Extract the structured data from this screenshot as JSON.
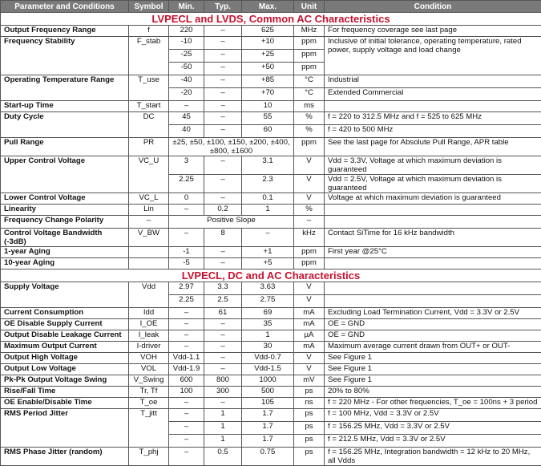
{
  "headers": [
    "Parameter and Conditions",
    "Symbol",
    "Min.",
    "Typ.",
    "Max.",
    "Unit",
    "Condition"
  ],
  "colors": {
    "header_bg": "#7a7a7a",
    "section_title": "#c8102e"
  },
  "sections": [
    {
      "title": "LVPECL and LVDS, Common AC Characteristics",
      "params": [
        {
          "param": "Output Frequency Range",
          "symbol": "f",
          "rows": [
            [
              "220",
              "–",
              "625",
              "MHz",
              "For frequency coverage see last page"
            ]
          ]
        },
        {
          "param": "Frequency Stability",
          "symbol": "F_stab",
          "shared_condition": "Inclusive of initial tolerance, operating temperature, rated power, supply voltage and load change",
          "rows": [
            [
              "-10",
              "–",
              "+10",
              "ppm"
            ],
            [
              "-25",
              "–",
              "+25",
              "ppm"
            ],
            [
              "-50",
              "–",
              "+50",
              "ppm"
            ]
          ]
        },
        {
          "param": "Operating Temperature Range",
          "symbol": "T_use",
          "rows": [
            [
              "-40",
              "–",
              "+85",
              "°C",
              "Industrial"
            ],
            [
              "-20",
              "–",
              "+70",
              "°C",
              "Extended Commercial"
            ]
          ]
        },
        {
          "param": "Start-up Time",
          "symbol": "T_start",
          "rows": [
            [
              "–",
              "–",
              "10",
              "ms",
              ""
            ]
          ]
        },
        {
          "param": "Duty Cycle",
          "symbol": "DC",
          "rows": [
            [
              "45",
              "–",
              "55",
              "%",
              "f = 220 to 312.5 MHz and f = 525 to 625 MHz"
            ],
            [
              "40",
              "–",
              "60",
              "%",
              "f = 420 to 500 MHz"
            ]
          ]
        },
        {
          "param": "Pull Range",
          "symbol": "PR",
          "rows": [
            {
              "merged": "±25, ±50, ±100, ±150, ±200, ±400, ±800, ±1600",
              "unit": "ppm",
              "condition": "See the last page for Absolute Pull Range, APR table"
            }
          ]
        },
        {
          "param": "Upper Control Voltage",
          "symbol": "VC_U",
          "rows": [
            [
              "3",
              "–",
              "3.1",
              "V",
              "Vdd = 3.3V, Voltage at which maximum deviation is guaranteed"
            ],
            [
              "2.25",
              "–",
              "2.3",
              "V",
              "Vdd = 2.5V, Voltage at which maximum deviation is guaranteed"
            ]
          ]
        },
        {
          "param": "Lower Control Voltage",
          "symbol": "VC_L",
          "rows": [
            [
              "0",
              "–",
              "0.1",
              "V",
              "Voltage at which maximum deviation is guaranteed"
            ]
          ]
        },
        {
          "param": "Linearity",
          "symbol": "Lin",
          "rows": [
            [
              "–",
              "0.2",
              "1",
              "%",
              ""
            ]
          ]
        },
        {
          "param": "Frequency Change Polarity",
          "symbol": "–",
          "rows": [
            {
              "merged": "Positive Slope",
              "unit": "–",
              "condition": ""
            }
          ]
        },
        {
          "param": "Control Voltage Bandwidth (-3dB)",
          "symbol": "V_BW",
          "rows": [
            [
              "–",
              "8",
              "–",
              "kHz",
              "Contact SiTime for 16 kHz bandwidth"
            ]
          ]
        },
        {
          "param": "1-year Aging",
          "symbol": "",
          "rows": [
            [
              "-1",
              "–",
              "+1",
              "ppm",
              "First year @25°C"
            ]
          ]
        },
        {
          "param": "10-year Aging",
          "symbol": "",
          "rows": [
            [
              "-5",
              "–",
              "+5",
              "ppm",
              ""
            ]
          ]
        }
      ]
    },
    {
      "title": "LVPECL, DC and AC Characteristics",
      "params": [
        {
          "param": "Supply Voltage",
          "symbol": "Vdd",
          "rows": [
            [
              "2.97",
              "3.3",
              "3.63",
              "V",
              ""
            ],
            [
              "2.25",
              "2.5",
              "2.75",
              "V",
              ""
            ]
          ]
        },
        {
          "param": "Current Consumption",
          "symbol": "Idd",
          "rows": [
            [
              "–",
              "61",
              "69",
              "mA",
              "Excluding Load Termination Current, Vdd = 3.3V or 2.5V"
            ]
          ]
        },
        {
          "param": "OE Disable Supply Current",
          "symbol": "I_OE",
          "rows": [
            [
              "–",
              "–",
              "35",
              "mA",
              "OE = GND"
            ]
          ]
        },
        {
          "param": "Output Disable Leakage Current",
          "symbol": "I_leak",
          "rows": [
            [
              "–",
              "–",
              "1",
              "µA",
              "OE = GND"
            ]
          ]
        },
        {
          "param": "Maximum Output Current",
          "symbol": "I-driver",
          "rows": [
            [
              "–",
              "–",
              "30",
              "mA",
              "Maximum average current drawn from OUT+ or OUT-"
            ]
          ]
        },
        {
          "param": "Output High Voltage",
          "symbol": "VOH",
          "rows": [
            [
              "Vdd-1.1",
              "–",
              "Vdd-0.7",
              "V",
              "See Figure 1"
            ]
          ]
        },
        {
          "param": "Output Low Voltage",
          "symbol": "VOL",
          "rows": [
            [
              "Vdd-1.9",
              "–",
              "Vdd-1.5",
              "V",
              "See Figure 1"
            ]
          ]
        },
        {
          "param": "Pk-Pk Output Voltage Swing",
          "symbol": "V_Swing",
          "rows": [
            [
              "600",
              "800",
              "1000",
              "mV",
              "See Figure 1"
            ]
          ]
        },
        {
          "param": "Rise/Fall Time",
          "symbol": "Tr, Tf",
          "rows": [
            [
              "100",
              "300",
              "500",
              "ps",
              "20% to 80%"
            ]
          ]
        },
        {
          "param": "OE Enable/Disable Time",
          "symbol": "T_oe",
          "rows": [
            [
              "–",
              "–",
              "105",
              "ns",
              "f = 220 MHz - For other frequencies, T_oe = 100ns + 3 period"
            ]
          ]
        },
        {
          "param": "RMS Period Jitter",
          "symbol": "T_jitt",
          "rows": [
            [
              "–",
              "1",
              "1.7",
              "ps",
              "f = 100 MHz, Vdd = 3.3V or 2.5V"
            ],
            [
              "–",
              "1",
              "1.7",
              "ps",
              "f = 156.25 MHz, Vdd = 3.3V or 2.5V"
            ],
            [
              "–",
              "1",
              "1.7",
              "ps",
              "f = 212.5 MHz, Vdd = 3.3V or 2.5V"
            ]
          ]
        },
        {
          "param": "RMS Phase Jitter (random)",
          "symbol": "T_phj",
          "rows": [
            [
              "–",
              "0.5",
              "0.75",
              "ps",
              "f = 156.25 MHz, Integration bandwidth = 12 kHz to 20 MHz, all Vdds"
            ]
          ]
        }
      ]
    }
  ]
}
